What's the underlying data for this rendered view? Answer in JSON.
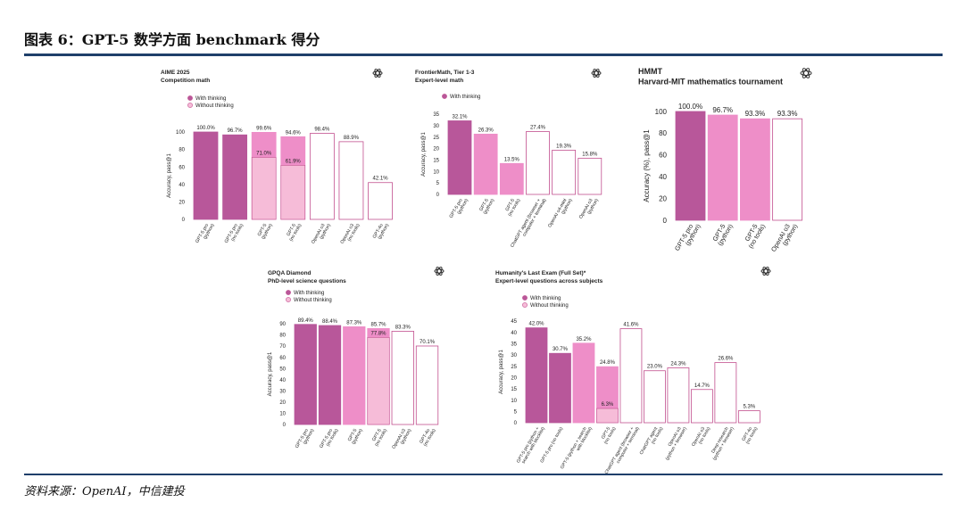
{
  "header": {
    "title": "图表 6：GPT-5  数学方面 benchmark 得分"
  },
  "footer": {
    "source": "资料来源：OpenAI，中信建投"
  },
  "legend_labels": {
    "thinking": "With thinking",
    "no_thinking": "Without thinking"
  },
  "colors": {
    "dark": "#b8579a",
    "mid": "#ee8ec8",
    "light": "#f6bcd8",
    "outline": "#c2508f",
    "logo": "#333333"
  },
  "chart_data": [
    {
      "id": "aime",
      "type": "bar",
      "title": "AIME 2025",
      "subtitle": "Competition math",
      "ylabel": "Accuracy, pass@1",
      "ylim": [
        0,
        100
      ],
      "yticks": [
        0,
        20,
        40,
        60,
        80,
        100
      ],
      "legend": [
        "thinking",
        "no_thinking"
      ],
      "categories": [
        "GPT-5 pro\n(python)",
        "GPT-5 pro\n(no tools)",
        "GPT-5\n(python)",
        "GPT-5\n(no tools)",
        "OpenAI o3\n(python)",
        "OpenAI o3\n(no tools)",
        "GPT-4o\n(python)"
      ],
      "values": [
        100.0,
        96.7,
        99.6,
        94.6,
        98.4,
        88.9,
        42.1
      ],
      "labels": [
        "100.0%",
        "96.7%",
        "99.6%",
        "94.6%",
        "98.4%",
        "88.9%",
        "42.1%"
      ],
      "styles": [
        "dark",
        "dark",
        "mid",
        "mid",
        "outline",
        "outline",
        "outline"
      ],
      "inner": [
        null,
        null,
        {
          "value": 71.0,
          "label": "71.0%"
        },
        {
          "value": 61.9,
          "label": "61.9%"
        },
        null,
        null,
        null
      ]
    },
    {
      "id": "frontiermath",
      "type": "bar",
      "title": "FrontierMath, Tier 1-3",
      "subtitle": "Expert-level math",
      "ylabel": "Accuracy, pass@1",
      "ylim": [
        0,
        35
      ],
      "yticks": [
        0,
        5,
        10,
        15,
        20,
        25,
        30,
        35
      ],
      "legend": [
        "thinking"
      ],
      "categories": [
        "GPT-5 pro\n(python)",
        "GPT-5\n(python)",
        "GPT-5\n(no tools)",
        "ChatGPT agent (browser +\ncomputer + terminal)",
        "OpenAI o4-mini\n(python)",
        "OpenAI o3\n(python)"
      ],
      "values": [
        32.1,
        26.3,
        13.5,
        27.4,
        19.3,
        15.8
      ],
      "labels": [
        "32.1%",
        "26.3%",
        "13.5%",
        "27.4%",
        "19.3%",
        "15.8%"
      ],
      "styles": [
        "dark",
        "mid",
        "mid",
        "outline",
        "outline",
        "outline"
      ],
      "inner": [
        null,
        null,
        null,
        null,
        null,
        null
      ]
    },
    {
      "id": "hmmt",
      "type": "bar",
      "title": "HMMT",
      "subtitle": "Harvard-MIT mathematics tournament",
      "ylabel": "Accuracy (%), pass@1",
      "ylim": [
        0,
        100
      ],
      "yticks": [
        0,
        20,
        40,
        60,
        80,
        100
      ],
      "legend": [],
      "categories": [
        "GPT-5 pro\n(python)",
        "GPT-5\n(python)",
        "GPT-5\n(no tools)",
        "OpenAI o3\n(python)"
      ],
      "values": [
        100.0,
        96.7,
        93.3,
        93.3
      ],
      "labels": [
        "100.0%",
        "96.7%",
        "93.3%",
        "93.3%"
      ],
      "styles": [
        "dark",
        "mid",
        "mid",
        "outline"
      ],
      "inner": [
        null,
        null,
        null,
        null
      ]
    },
    {
      "id": "gpqa",
      "type": "bar",
      "title": "GPQA Diamond",
      "subtitle": "PhD-level science questions",
      "ylabel": "Accuracy, pass@1",
      "ylim": [
        0,
        90
      ],
      "yticks": [
        0,
        10,
        20,
        30,
        40,
        50,
        60,
        70,
        80,
        90
      ],
      "legend": [
        "thinking",
        "no_thinking"
      ],
      "categories": [
        "GPT-5 pro\n(python)",
        "GPT-5 pro\n(no tools)",
        "GPT-5\n(python)",
        "GPT-5\n(no tools)",
        "OpenAI o3\n(python)",
        "GPT-4o\n(no tools)"
      ],
      "values": [
        89.4,
        88.4,
        87.3,
        85.7,
        83.3,
        70.1
      ],
      "labels": [
        "89.4%",
        "88.4%",
        "87.3%",
        "85.7%",
        "83.3%",
        "70.1%"
      ],
      "styles": [
        "dark",
        "dark",
        "mid",
        "mid",
        "outline",
        "outline"
      ],
      "inner": [
        null,
        null,
        null,
        {
          "value": 77.8,
          "label": "77.8%"
        },
        null,
        null
      ]
    },
    {
      "id": "hle",
      "type": "bar",
      "title": "Humanity's Last Exam (Full Set)*",
      "subtitle": "Expert-level questions across subjects",
      "ylabel": "Accuracy, pass@1",
      "ylim": [
        0,
        45
      ],
      "yticks": [
        0,
        5,
        10,
        15,
        20,
        25,
        30,
        35,
        40,
        45
      ],
      "legend": [
        "thinking",
        "no_thinking"
      ],
      "categories": [
        "GPT-5 pro (python +\nsearch with blocklist)",
        "GPT-5 pro (no tools)",
        "GPT-5 (python + search\nwith blocklist)",
        "GPT-5\n(no tools)",
        "ChatGPT agent (browser +\ncomputer + terminal)",
        "ChatGPT agent\n(no tools)",
        "OpenAI o3\n(python + browser)",
        "OpenAI o3\n(no tools)",
        "Deep research\n(python + browser)",
        "GPT-4o\n(no tools)"
      ],
      "values": [
        42.0,
        30.7,
        35.2,
        24.8,
        41.6,
        23.0,
        24.3,
        14.7,
        26.6,
        5.3
      ],
      "labels": [
        "42.0%",
        "30.7%",
        "35.2%",
        "24.8%",
        "41.6%",
        "23.0%",
        "24.3%",
        "14.7%",
        "26.6%",
        "5.3%"
      ],
      "styles": [
        "dark",
        "dark",
        "mid",
        "mid",
        "outline",
        "outline",
        "outline",
        "outline",
        "outline",
        "outline"
      ],
      "inner": [
        null,
        null,
        null,
        {
          "value": 6.3,
          "label": "6.3%"
        },
        null,
        null,
        null,
        null,
        null,
        null
      ]
    }
  ]
}
